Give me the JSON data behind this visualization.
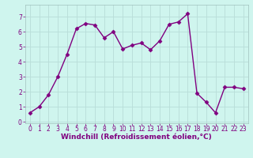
{
  "x": [
    0,
    1,
    2,
    3,
    4,
    5,
    6,
    7,
    8,
    9,
    10,
    11,
    12,
    13,
    14,
    15,
    16,
    17,
    18,
    19,
    20,
    21,
    22,
    23
  ],
  "y": [
    0.6,
    1.0,
    1.8,
    3.0,
    4.5,
    6.2,
    6.55,
    6.45,
    5.6,
    6.0,
    4.85,
    5.1,
    5.25,
    4.8,
    5.4,
    6.5,
    6.65,
    7.2,
    1.9,
    1.3,
    0.6,
    2.3,
    2.3,
    2.2
  ],
  "line_color": "#800080",
  "marker": "D",
  "markersize": 2.5,
  "linewidth": 1.0,
  "bg_color": "#cff5ee",
  "grid_color": "#b8ddd8",
  "xlabel": "Windchill (Refroidissement éolien,°C)",
  "xlabel_color": "#800080",
  "xlabel_fontsize": 6.5,
  "tick_color": "#800080",
  "tick_fontsize": 5.5,
  "ylim": [
    -0.1,
    7.8
  ],
  "yticks": [
    0,
    1,
    2,
    3,
    4,
    5,
    6,
    7
  ],
  "xlim": [
    -0.5,
    23.5
  ],
  "xticks": [
    0,
    1,
    2,
    3,
    4,
    5,
    6,
    7,
    8,
    9,
    10,
    11,
    12,
    13,
    14,
    15,
    16,
    17,
    18,
    19,
    20,
    21,
    22,
    23
  ]
}
